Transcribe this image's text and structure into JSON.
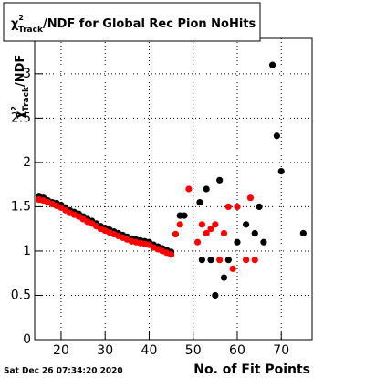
{
  "chart_data": {
    "type": "scatter",
    "title": {
      "symbol": "χ",
      "sup": "2",
      "sub": "Track",
      "text": "/NDF for Global Rec Pion NoHits"
    },
    "ylabel": {
      "symbol": "χ",
      "sup": "2",
      "sub": "Track",
      "text": "/NDF"
    },
    "xlabel": "No. of Fit Points",
    "timestamp": "Sat Dec 26 07:34:20 2020",
    "xlim": [
      14,
      77
    ],
    "ylim": [
      0,
      3.4
    ],
    "xticks": [
      20,
      30,
      40,
      50,
      60,
      70
    ],
    "yticks": [
      0,
      0.5,
      1,
      1.5,
      2,
      2.5,
      3
    ],
    "grid": true,
    "series": [
      {
        "color": "#000000",
        "x": [
          15,
          16,
          17,
          18,
          19,
          20,
          21,
          22,
          23,
          24,
          25,
          26,
          27,
          28,
          29,
          30,
          31,
          32,
          33,
          34,
          35,
          36,
          37,
          38,
          39,
          40,
          41,
          42,
          43,
          44,
          45,
          46,
          47,
          48,
          51.5,
          52,
          53,
          54,
          55,
          56,
          57,
          58,
          60,
          62,
          64,
          65,
          66,
          68,
          69,
          70,
          75
        ],
        "values": [
          1.62,
          1.6,
          1.57,
          1.55,
          1.54,
          1.52,
          1.49,
          1.46,
          1.44,
          1.42,
          1.39,
          1.36,
          1.34,
          1.31,
          1.28,
          1.26,
          1.24,
          1.22,
          1.2,
          1.18,
          1.16,
          1.14,
          1.13,
          1.12,
          1.11,
          1.1,
          1.07,
          1.05,
          1.03,
          1.01,
          0.99,
          1.19,
          1.4,
          1.4,
          1.55,
          0.9,
          1.7,
          0.9,
          0.5,
          1.8,
          0.7,
          0.9,
          1.1,
          1.3,
          1.2,
          1.5,
          1.1,
          3.1,
          2.3,
          1.9,
          1.2
        ]
      },
      {
        "color": "#ff0000",
        "x": [
          15,
          16,
          17,
          18,
          19,
          20,
          21,
          22,
          23,
          24,
          25,
          26,
          27,
          28,
          29,
          30,
          31,
          32,
          33,
          34,
          35,
          36,
          37,
          38,
          39,
          40,
          41,
          42,
          43,
          44,
          45,
          46,
          47,
          49,
          51,
          52,
          53,
          54,
          55,
          56,
          57,
          58,
          59,
          60,
          62,
          63,
          64
        ],
        "values": [
          1.58,
          1.57,
          1.55,
          1.53,
          1.51,
          1.49,
          1.46,
          1.43,
          1.41,
          1.39,
          1.36,
          1.33,
          1.31,
          1.28,
          1.25,
          1.23,
          1.21,
          1.19,
          1.17,
          1.15,
          1.13,
          1.11,
          1.1,
          1.09,
          1.08,
          1.07,
          1.04,
          1.02,
          1.0,
          0.98,
          0.96,
          1.19,
          1.3,
          1.7,
          1.1,
          1.3,
          1.2,
          1.25,
          1.3,
          0.9,
          1.2,
          1.5,
          0.8,
          1.5,
          0.9,
          1.6,
          0.9
        ]
      }
    ]
  }
}
